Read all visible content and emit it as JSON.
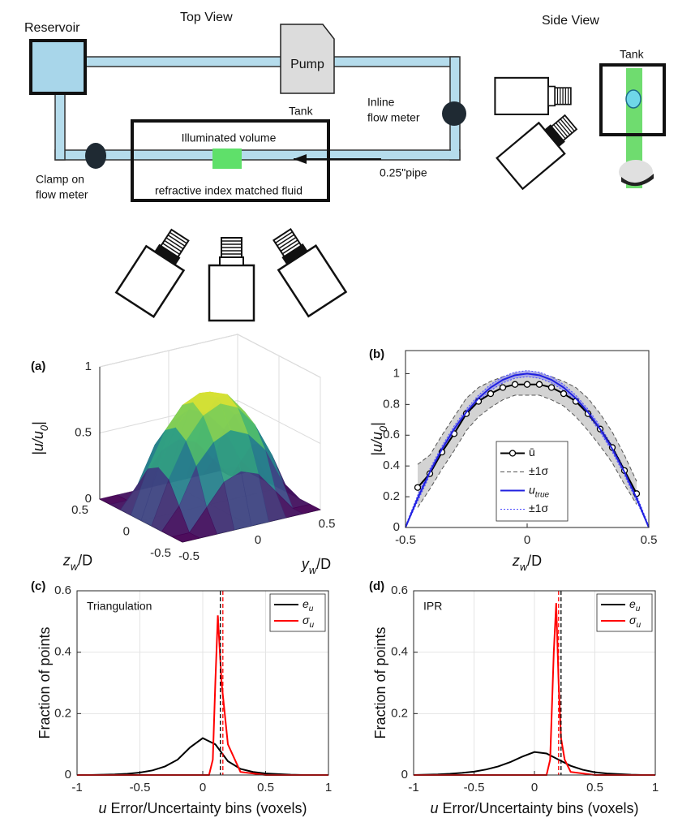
{
  "diagram": {
    "top_view_title": "Top View",
    "side_view_title": "Side View",
    "reservoir": "Reservoir",
    "pump": "Pump",
    "tank": "Tank",
    "inline_flow_meter": [
      "Inline",
      "flow meter"
    ],
    "illuminated_volume": "Illuminated volume",
    "fluid": "refractive index matched fluid",
    "pipe": "0.25\"pipe",
    "clamp_flow_meter": [
      "Clamp on",
      "flow meter"
    ],
    "side_tank": "Tank"
  },
  "chart_data": [
    {
      "type": "surface3d",
      "panel_label": "(a)",
      "colormap": "viridis",
      "x": [
        -0.5,
        -0.375,
        -0.25,
        -0.125,
        0,
        0.125,
        0.25,
        0.375,
        0.5
      ],
      "y": [
        -0.5,
        -0.375,
        -0.25,
        -0.125,
        0,
        0.125,
        0.25,
        0.375,
        0.5
      ],
      "values": [
        [
          0,
          0,
          0,
          0,
          0,
          0,
          0,
          0,
          0
        ],
        [
          0,
          0,
          0.16,
          0.32,
          0.37,
          0.32,
          0.16,
          0,
          0
        ],
        [
          0,
          0.16,
          0.43,
          0.58,
          0.64,
          0.58,
          0.43,
          0.16,
          0
        ],
        [
          0,
          0.32,
          0.58,
          0.74,
          0.8,
          0.74,
          0.58,
          0.32,
          0
        ],
        [
          0,
          0.37,
          0.64,
          0.8,
          0.85,
          0.8,
          0.64,
          0.37,
          0
        ],
        [
          0,
          0.32,
          0.58,
          0.74,
          0.8,
          0.74,
          0.58,
          0.32,
          0
        ],
        [
          0,
          0.16,
          0.43,
          0.58,
          0.64,
          0.58,
          0.43,
          0.16,
          0
        ],
        [
          0,
          0,
          0.16,
          0.32,
          0.37,
          0.32,
          0.16,
          0,
          0
        ],
        [
          0,
          0,
          0,
          0,
          0,
          0,
          0,
          0,
          0
        ]
      ],
      "xlim": [
        -0.5,
        0.5
      ],
      "ylim": [
        -0.5,
        0.5
      ],
      "zlim": [
        0,
        1
      ],
      "xticks": [
        -0.5,
        0,
        0.5
      ],
      "yticks": [
        -0.5,
        0,
        0.5
      ],
      "zticks": [
        0,
        0.5,
        1
      ],
      "xlabel": {
        "main": "y",
        "sub": "w",
        "tail": "/D"
      },
      "ylabel": {
        "main": "z",
        "sub": "w",
        "tail": "/D"
      },
      "zlabel": {
        "main": "|u/u",
        "sub": "0",
        "tail": "|"
      }
    },
    {
      "type": "line",
      "panel_label": "(b)",
      "legend": "lower center",
      "grid": false,
      "xlim": [
        -0.5,
        0.5
      ],
      "ylim": [
        0,
        1.15
      ],
      "xticks": [
        -0.5,
        0,
        0.5
      ],
      "yticks": [
        0,
        0.2,
        0.4,
        0.6,
        0.8,
        1
      ],
      "xlabel": {
        "main": "z",
        "sub": "w",
        "tail": "/D"
      },
      "ylabel": {
        "main": "|u/u",
        "sub": "0",
        "tail": "|"
      },
      "series": [
        {
          "name": "ū",
          "color": "#000000",
          "marker": "circle",
          "x": [
            -0.45,
            -0.4,
            -0.35,
            -0.3,
            -0.25,
            -0.2,
            -0.15,
            -0.1,
            -0.05,
            0,
            0.05,
            0.1,
            0.15,
            0.2,
            0.25,
            0.3,
            0.35,
            0.4,
            0.45
          ],
          "values": [
            0.26,
            0.35,
            0.49,
            0.61,
            0.74,
            0.82,
            0.87,
            0.91,
            0.93,
            0.93,
            0.93,
            0.91,
            0.87,
            0.82,
            0.74,
            0.64,
            0.52,
            0.37,
            0.22
          ]
        },
        {
          "name": "±1σ",
          "color": "#555555",
          "style": "dashed",
          "fill": "#c4c4c4",
          "x": [
            -0.45,
            -0.4,
            -0.35,
            -0.3,
            -0.25,
            -0.2,
            -0.15,
            -0.1,
            -0.05,
            0,
            0.05,
            0.1,
            0.15,
            0.2,
            0.25,
            0.3,
            0.35,
            0.4,
            0.45
          ],
          "lower": [
            0.13,
            0.25,
            0.38,
            0.5,
            0.63,
            0.72,
            0.78,
            0.83,
            0.86,
            0.86,
            0.86,
            0.83,
            0.79,
            0.72,
            0.63,
            0.53,
            0.42,
            0.28,
            0.15
          ],
          "upper": [
            0.41,
            0.47,
            0.6,
            0.72,
            0.84,
            0.91,
            0.95,
            0.98,
            1,
            1,
            1,
            0.98,
            0.95,
            0.91,
            0.84,
            0.74,
            0.62,
            0.47,
            0.3
          ]
        },
        {
          "name": {
            "main": "u",
            "sub": "true"
          },
          "color": "#2020e0",
          "x": [
            -0.5,
            -0.45,
            -0.4,
            -0.35,
            -0.3,
            -0.25,
            -0.2,
            -0.15,
            -0.1,
            -0.05,
            0,
            0.05,
            0.1,
            0.15,
            0.2,
            0.25,
            0.3,
            0.35,
            0.4,
            0.45,
            0.5
          ],
          "values": [
            0,
            0.19,
            0.36,
            0.51,
            0.64,
            0.75,
            0.84,
            0.91,
            0.96,
            0.99,
            1,
            0.99,
            0.96,
            0.91,
            0.84,
            0.75,
            0.64,
            0.51,
            0.36,
            0.19,
            0
          ]
        },
        {
          "name": "±1σ",
          "color": "#4a4aff",
          "style": "dotted",
          "fill": "#9a9ae8",
          "x": [
            -0.5,
            -0.45,
            -0.4,
            -0.35,
            -0.3,
            -0.25,
            -0.2,
            -0.15,
            -0.1,
            -0.05,
            0,
            0.05,
            0.1,
            0.15,
            0.2,
            0.25,
            0.3,
            0.35,
            0.4,
            0.45,
            0.5
          ],
          "lower": [
            0,
            0.17,
            0.34,
            0.49,
            0.62,
            0.73,
            0.82,
            0.89,
            0.94,
            0.97,
            0.98,
            0.97,
            0.94,
            0.89,
            0.82,
            0.73,
            0.62,
            0.49,
            0.34,
            0.17,
            0
          ],
          "upper": [
            0.01,
            0.21,
            0.38,
            0.53,
            0.66,
            0.77,
            0.86,
            0.93,
            0.98,
            1.01,
            1.02,
            1.01,
            0.98,
            0.93,
            0.86,
            0.77,
            0.66,
            0.53,
            0.38,
            0.21,
            0.01
          ]
        }
      ]
    },
    {
      "type": "line",
      "panel_label": "(c)",
      "annotation": "Triangulation",
      "legend": "upper right",
      "grid": true,
      "xlim": [
        -1,
        1
      ],
      "ylim": [
        0,
        0.6
      ],
      "xticks": [
        -1,
        -0.5,
        0,
        0.5,
        1
      ],
      "yticks": [
        0,
        0.2,
        0.4,
        0.6
      ],
      "xlabel": {
        "main": "u",
        "tail": " Error/Uncertainty bins (voxels)"
      },
      "ylabel": "Fraction of points",
      "reference_lines": [
        {
          "x": 0.14,
          "color": "#000000",
          "style": "dashed"
        },
        {
          "x": 0.16,
          "color": "#ff0000",
          "style": "dashed"
        }
      ],
      "series": [
        {
          "name": {
            "main": "e",
            "sub": "u"
          },
          "color": "#000000",
          "x": [
            -1,
            -0.9,
            -0.8,
            -0.7,
            -0.6,
            -0.5,
            -0.4,
            -0.3,
            -0.2,
            -0.1,
            0,
            0.1,
            0.2,
            0.3,
            0.4,
            0.5,
            0.6,
            0.7,
            0.8,
            0.9,
            1
          ],
          "values": [
            0,
            0,
            0.001,
            0.002,
            0.004,
            0.008,
            0.015,
            0.028,
            0.05,
            0.09,
            0.12,
            0.1,
            0.045,
            0.02,
            0.01,
            0.005,
            0.003,
            0.001,
            0,
            0,
            0
          ]
        },
        {
          "name": {
            "main": "σ",
            "sub": "u"
          },
          "color": "#ff0000",
          "x": [
            -1,
            0.05,
            0.08,
            0.1,
            0.12,
            0.15,
            0.2,
            0.3,
            0.5,
            1
          ],
          "values": [
            0,
            0,
            0.05,
            0.3,
            0.52,
            0.3,
            0.1,
            0.01,
            0,
            0
          ]
        }
      ]
    },
    {
      "type": "line",
      "panel_label": "(d)",
      "annotation": "IPR",
      "legend": "upper right",
      "grid": true,
      "xlim": [
        -1,
        1
      ],
      "ylim": [
        0,
        0.6
      ],
      "xticks": [
        -1,
        -0.5,
        0,
        0.5,
        1
      ],
      "yticks": [
        0,
        0.2,
        0.4,
        0.6
      ],
      "xlabel": {
        "main": "u",
        "tail": " Error/Uncertainty bins (voxels)"
      },
      "ylabel": "Fraction of points",
      "reference_lines": [
        {
          "x": 0.22,
          "color": "#000000",
          "style": "dashed"
        },
        {
          "x": 0.2,
          "color": "#ff0000",
          "style": "dashed"
        }
      ],
      "series": [
        {
          "name": {
            "main": "e",
            "sub": "u"
          },
          "color": "#000000",
          "x": [
            -1,
            -0.9,
            -0.8,
            -0.7,
            -0.6,
            -0.5,
            -0.4,
            -0.3,
            -0.2,
            -0.1,
            0,
            0.1,
            0.2,
            0.3,
            0.4,
            0.5,
            0.6,
            0.7,
            0.8,
            0.9,
            1
          ],
          "values": [
            0,
            0.001,
            0.002,
            0.004,
            0.007,
            0.011,
            0.018,
            0.028,
            0.042,
            0.06,
            0.075,
            0.07,
            0.05,
            0.03,
            0.017,
            0.009,
            0.005,
            0.003,
            0.001,
            0,
            0
          ]
        },
        {
          "name": {
            "main": "σ",
            "sub": "u"
          },
          "color": "#ff0000",
          "x": [
            -1,
            0.1,
            0.13,
            0.16,
            0.18,
            0.2,
            0.22,
            0.25,
            0.3,
            0.5,
            1
          ],
          "values": [
            0,
            0,
            0.05,
            0.4,
            0.56,
            0.3,
            0.12,
            0.05,
            0.01,
            0,
            0
          ]
        }
      ]
    }
  ]
}
